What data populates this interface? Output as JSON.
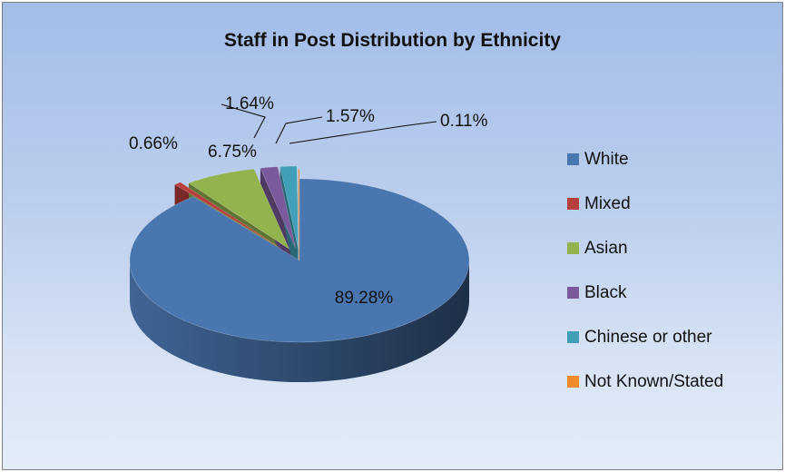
{
  "chart_data": {
    "type": "pie",
    "title": "Staff in Post Distribution by Ethnicity",
    "categories": [
      "White",
      "Mixed",
      "Asian",
      "Black",
      "Chinese or other",
      "Not Known/Stated"
    ],
    "values": [
      89.28,
      0.66,
      6.75,
      1.64,
      1.57,
      0.11
    ],
    "labels": [
      "89.28%",
      "0.66%",
      "6.75%",
      "1.64%",
      "1.57%",
      "0.11%"
    ],
    "colors": [
      "#4a76b0",
      "#b8403c",
      "#93b34e",
      "#7a5a9a",
      "#41a0b8",
      "#f08a2a"
    ],
    "legend_position": "right",
    "style": "3d-exploded"
  }
}
